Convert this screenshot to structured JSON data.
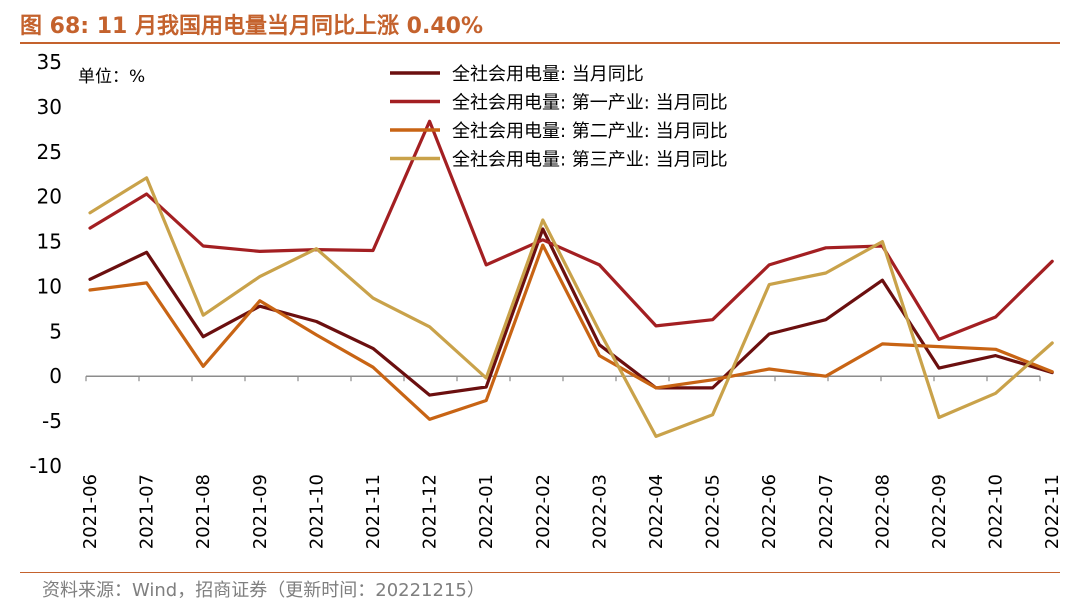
{
  "figure": {
    "title": "图 68:  11 月我国用电量当月同比上涨 0.40%",
    "source": "资料来源：Wind，招商证券（更新时间：20221215）"
  },
  "chart_data": {
    "type": "line",
    "unit_label": "单位：%",
    "ylim": [
      -10,
      35
    ],
    "yticks": [
      35,
      30,
      25,
      20,
      15,
      10,
      5,
      0,
      -5,
      -10
    ],
    "legend_position": "top-right",
    "grid": false,
    "categories": [
      "2021-06",
      "2021-07",
      "2021-08",
      "2021-09",
      "2021-10",
      "2021-11",
      "2021-12",
      "2022-01",
      "2022-02",
      "2022-03",
      "2022-04",
      "2022-05",
      "2022-06",
      "2022-07",
      "2022-08",
      "2022-09",
      "2022-10",
      "2022-11"
    ],
    "series": [
      {
        "name": "全社会用电量: 当月同比",
        "color": "#6b0f0f",
        "values": [
          10.8,
          13.8,
          4.4,
          7.8,
          6.1,
          3.1,
          -2.1,
          -1.2,
          16.4,
          3.5,
          -1.3,
          -1.3,
          4.7,
          6.3,
          10.7,
          0.9,
          2.3,
          0.4
        ]
      },
      {
        "name": "全社会用电量: 第一产业: 当月同比",
        "color": "#a31f22",
        "values": [
          16.5,
          20.3,
          14.5,
          13.9,
          14.1,
          14.0,
          28.4,
          12.4,
          15.2,
          12.4,
          5.6,
          6.3,
          12.4,
          14.3,
          14.5,
          4.1,
          6.6,
          12.8
        ]
      },
      {
        "name": "全社会用电量: 第二产业: 当月同比",
        "color": "#c86414",
        "values": [
          9.6,
          10.4,
          1.1,
          8.4,
          4.6,
          1.0,
          -4.8,
          -2.7,
          14.6,
          2.3,
          -1.3,
          -0.4,
          0.8,
          0.0,
          3.6,
          3.3,
          3.0,
          0.5
        ]
      },
      {
        "name": "全社会用电量: 第三产业: 当月同比",
        "color": "#c9a24a",
        "values": [
          18.2,
          22.1,
          6.8,
          11.1,
          14.2,
          8.7,
          5.5,
          -0.2,
          17.4,
          5.0,
          -6.7,
          -4.3,
          10.2,
          11.5,
          15.0,
          -4.6,
          -1.9,
          3.7
        ]
      }
    ]
  }
}
